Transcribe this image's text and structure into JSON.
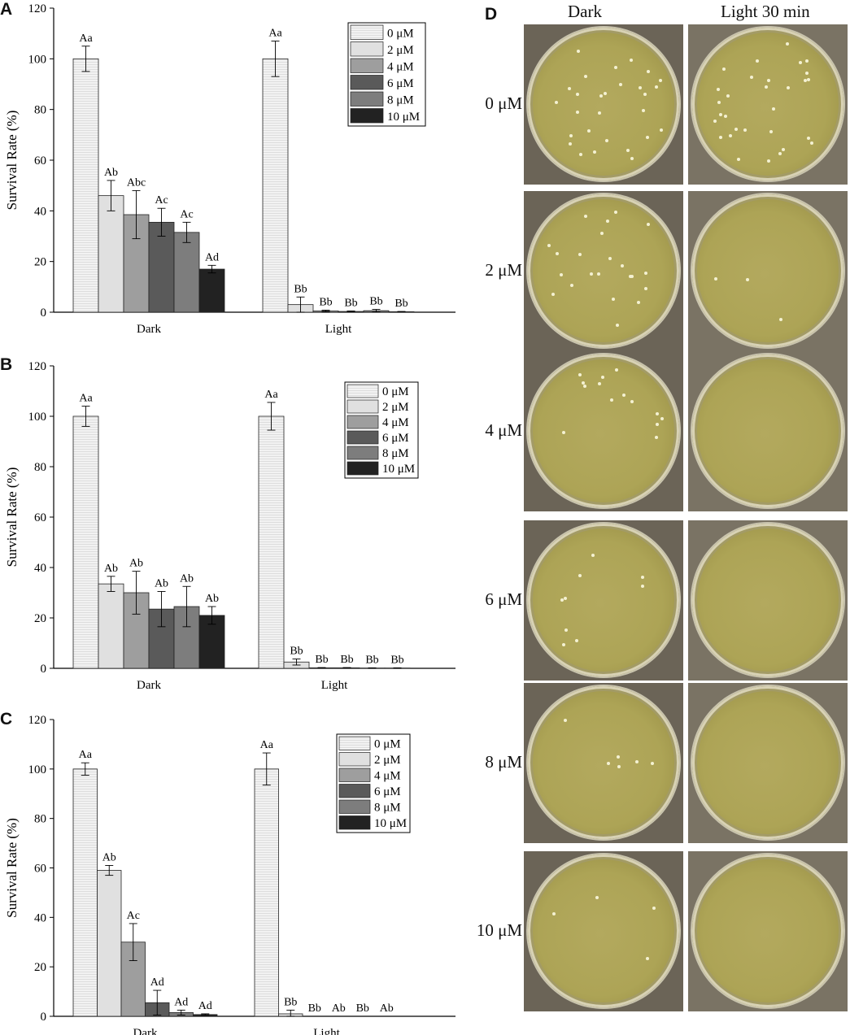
{
  "panels": {
    "a": "A",
    "b": "B",
    "c": "C",
    "d": "D"
  },
  "chart_data": [
    {
      "id": "A",
      "type": "bar",
      "categories": [
        "Dark",
        "Light"
      ],
      "ylabel": "Survival Rate (%)",
      "ylim": [
        0,
        120
      ],
      "yticks": [
        0,
        20,
        40,
        60,
        80,
        100,
        120
      ],
      "legend_position": "top-right",
      "series": [
        {
          "name": "0 μM",
          "values": [
            100,
            100
          ],
          "errors": [
            5,
            7
          ],
          "labels": [
            "Aa",
            "Aa"
          ],
          "color": "#eeeeee"
        },
        {
          "name": "2 μM",
          "values": [
            46,
            3
          ],
          "errors": [
            6,
            3
          ],
          "labels": [
            "Ab",
            "Bb"
          ],
          "color": "#dcdcdc"
        },
        {
          "name": "4 μM",
          "values": [
            38.5,
            0.5
          ],
          "errors": [
            9.5,
            0.3
          ],
          "labels": [
            "Abc",
            "Bb"
          ],
          "color": "#9e9e9e"
        },
        {
          "name": "6 μM",
          "values": [
            35.5,
            0.3
          ],
          "errors": [
            5.5,
            0.2
          ],
          "labels": [
            "Ac",
            "Bb"
          ],
          "color": "#5a5a5a"
        },
        {
          "name": "8 μM",
          "values": [
            31.5,
            0.6
          ],
          "errors": [
            4,
            0.5
          ],
          "labels": [
            "Ac",
            "Bb"
          ],
          "color": "#7d7d7d"
        },
        {
          "name": "10 μM",
          "values": [
            17,
            0.2
          ],
          "errors": [
            1.5,
            0.1
          ],
          "labels": [
            "Ad",
            "Bb"
          ],
          "color": "#222222"
        }
      ]
    },
    {
      "id": "B",
      "type": "bar",
      "categories": [
        "Dark",
        "Light"
      ],
      "ylabel": "Survival Rate (%)",
      "ylim": [
        0,
        120
      ],
      "yticks": [
        0,
        20,
        40,
        60,
        80,
        100,
        120
      ],
      "legend_position": "top-right",
      "series": [
        {
          "name": "0 μM",
          "values": [
            100,
            100
          ],
          "errors": [
            4,
            5.5
          ],
          "labels": [
            "Aa",
            "Aa"
          ],
          "color": "#eeeeee"
        },
        {
          "name": "2 μM",
          "values": [
            33.5,
            2.5
          ],
          "errors": [
            3,
            1.2
          ],
          "labels": [
            "Ab",
            "Bb"
          ],
          "color": "#dcdcdc"
        },
        {
          "name": "4 μM",
          "values": [
            30,
            0.2
          ],
          "errors": [
            8.5,
            0.1
          ],
          "labels": [
            "Ab",
            "Bb"
          ],
          "color": "#9e9e9e"
        },
        {
          "name": "6 μM",
          "values": [
            23.5,
            0.2
          ],
          "errors": [
            7,
            0.1
          ],
          "labels": [
            "Ab",
            "Bb"
          ],
          "color": "#5a5a5a"
        },
        {
          "name": "8 μM",
          "values": [
            24.5,
            0.1
          ],
          "errors": [
            8,
            0.1
          ],
          "labels": [
            "Ab",
            "Bb"
          ],
          "color": "#7d7d7d"
        },
        {
          "name": "10 μM",
          "values": [
            21,
            0.1
          ],
          "errors": [
            3.5,
            0.1
          ],
          "labels": [
            "Ab",
            "Bb"
          ],
          "color": "#222222"
        }
      ]
    },
    {
      "id": "C",
      "type": "bar",
      "categories": [
        "Dark",
        "Light"
      ],
      "ylabel": "Survival Rate (%)",
      "ylim": [
        0,
        120
      ],
      "yticks": [
        0,
        20,
        40,
        60,
        80,
        100,
        120
      ],
      "legend_position": "top-right",
      "series": [
        {
          "name": "0 μM",
          "values": [
            100,
            100
          ],
          "errors": [
            2.5,
            6.5
          ],
          "labels": [
            "Aa",
            "Aa"
          ],
          "color": "#eeeeee"
        },
        {
          "name": "2 μM",
          "values": [
            59,
            1
          ],
          "errors": [
            2,
            1.5
          ],
          "labels": [
            "Ab",
            "Bb"
          ],
          "color": "#dcdcdc"
        },
        {
          "name": "4 μM",
          "values": [
            30,
            0
          ],
          "errors": [
            7.5,
            0
          ],
          "labels": [
            "Ac",
            "Bb"
          ],
          "color": "#9e9e9e"
        },
        {
          "name": "6 μM",
          "values": [
            5.5,
            0
          ],
          "errors": [
            5,
            0
          ],
          "labels": [
            "Ad",
            "Ab"
          ],
          "color": "#5a5a5a"
        },
        {
          "name": "8 μM",
          "values": [
            1.5,
            0
          ],
          "errors": [
            1,
            0
          ],
          "labels": [
            "Ad",
            "Bb"
          ],
          "color": "#7d7d7d"
        },
        {
          "name": "10 μM",
          "values": [
            0.7,
            0
          ],
          "errors": [
            0.3,
            0
          ],
          "labels": [
            "Ad",
            "Ab"
          ],
          "color": "#222222"
        }
      ]
    }
  ],
  "photos": {
    "columns": [
      "Dark",
      "Light 30 min"
    ],
    "rows": [
      "0 μM",
      "2 μM",
      "4 μM",
      "6 μM",
      "8 μM",
      "10 μM"
    ]
  }
}
